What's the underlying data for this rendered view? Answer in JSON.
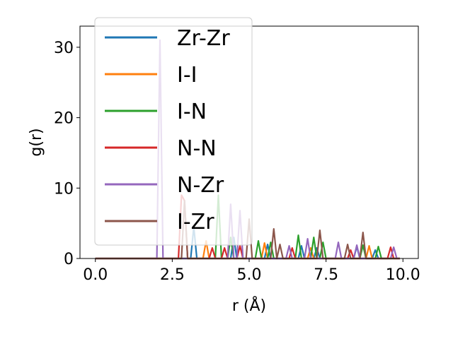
{
  "chart_data": {
    "type": "line",
    "xlabel": "r (Å)",
    "ylabel": "g(r)",
    "xlim": [
      -0.5,
      10.5
    ],
    "ylim": [
      0,
      33
    ],
    "xticks": [
      "0.0",
      "2.5",
      "5.0",
      "7.5",
      "10.0"
    ],
    "yticks": [
      "0",
      "10",
      "20",
      "30"
    ],
    "grid": false,
    "legend_position": "top-left",
    "series": [
      {
        "name": "Zr-Zr",
        "color": "#1f77b4",
        "x": [
          0.0,
          3.1,
          3.2,
          3.3,
          4.4,
          4.5,
          4.6,
          5.5,
          5.6,
          5.7,
          6.6,
          6.7,
          6.8,
          7.1,
          7.2,
          7.3,
          8.4,
          8.5,
          8.6,
          9.0,
          9.1,
          9.2,
          9.9
        ],
        "y": [
          0,
          0,
          4.5,
          0,
          0,
          3.0,
          0,
          0,
          2.0,
          0,
          0,
          1.8,
          0,
          0,
          1.5,
          0,
          0,
          1.7,
          0,
          0,
          1.2,
          0,
          0
        ]
      },
      {
        "name": "I-I",
        "color": "#ff7f0e",
        "x": [
          0.0,
          3.5,
          3.6,
          3.7,
          5.4,
          5.5,
          5.6,
          6.9,
          7.0,
          7.1,
          8.8,
          8.9,
          9.0,
          9.9
        ],
        "y": [
          0,
          0,
          2.5,
          0,
          0,
          2.2,
          0,
          0,
          1.5,
          0,
          0,
          1.8,
          0,
          0
        ]
      },
      {
        "name": "I-N",
        "color": "#2ca02c",
        "x": [
          0.0,
          3.9,
          4.0,
          4.1,
          4.3,
          4.4,
          4.5,
          5.2,
          5.3,
          5.4,
          5.6,
          5.7,
          5.8,
          6.5,
          6.6,
          6.7,
          7.0,
          7.1,
          7.2,
          7.3,
          7.4,
          7.5,
          8.6,
          8.7,
          8.8,
          9.1,
          9.2,
          9.3,
          9.9
        ],
        "y": [
          0,
          0,
          9.0,
          0,
          0,
          3.0,
          0,
          0,
          2.5,
          0,
          0,
          2.3,
          0,
          0,
          3.3,
          0,
          0,
          3.0,
          0,
          0,
          2.3,
          0,
          0,
          1.9,
          0,
          0,
          1.7,
          0,
          0
        ]
      },
      {
        "name": "N-N",
        "color": "#d62728",
        "x": [
          0.0,
          2.7,
          2.8,
          2.9,
          3.0,
          3.7,
          3.8,
          3.9,
          4.1,
          4.2,
          4.3,
          4.6,
          4.7,
          4.8,
          6.3,
          6.4,
          6.5,
          8.2,
          8.3,
          8.4,
          9.5,
          9.6,
          9.7,
          9.9
        ],
        "y": [
          0,
          0,
          9.0,
          8.2,
          0,
          0,
          1.5,
          0,
          0,
          1.5,
          0,
          0,
          1.8,
          0,
          0,
          1.5,
          0,
          0,
          1.2,
          0,
          0,
          1.6,
          0,
          0
        ]
      },
      {
        "name": "N-Zr",
        "color": "#9467bd",
        "x": [
          0.0,
          1.9,
          2.0,
          2.1,
          2.2,
          2.3,
          2.4,
          4.3,
          4.4,
          4.5,
          4.6,
          4.7,
          4.8,
          6.2,
          6.3,
          6.4,
          6.8,
          6.9,
          7.0,
          7.8,
          7.9,
          8.0,
          8.4,
          8.5,
          8.6,
          9.6,
          9.7,
          9.8,
          9.9
        ],
        "y": [
          0,
          0,
          0,
          31.0,
          0,
          0,
          0,
          0,
          7.7,
          0,
          0,
          6.8,
          0,
          0,
          1.8,
          0,
          0,
          2.8,
          0,
          0,
          2.3,
          0,
          0,
          1.9,
          0,
          0,
          1.6,
          0,
          0
        ]
      },
      {
        "name": "I-Zr",
        "color": "#8c564b",
        "x": [
          0.0,
          2.8,
          2.9,
          3.0,
          4.9,
          5.0,
          5.1,
          5.7,
          5.8,
          5.9,
          6.0,
          6.1,
          7.2,
          7.3,
          7.4,
          8.1,
          8.2,
          8.3,
          8.6,
          8.7,
          8.8,
          9.9
        ],
        "y": [
          0,
          0,
          8.2,
          0,
          0,
          5.6,
          0,
          0,
          4.2,
          0,
          2.0,
          0,
          0,
          4.0,
          0,
          0,
          2.0,
          0,
          0,
          3.7,
          0,
          0
        ]
      }
    ]
  }
}
